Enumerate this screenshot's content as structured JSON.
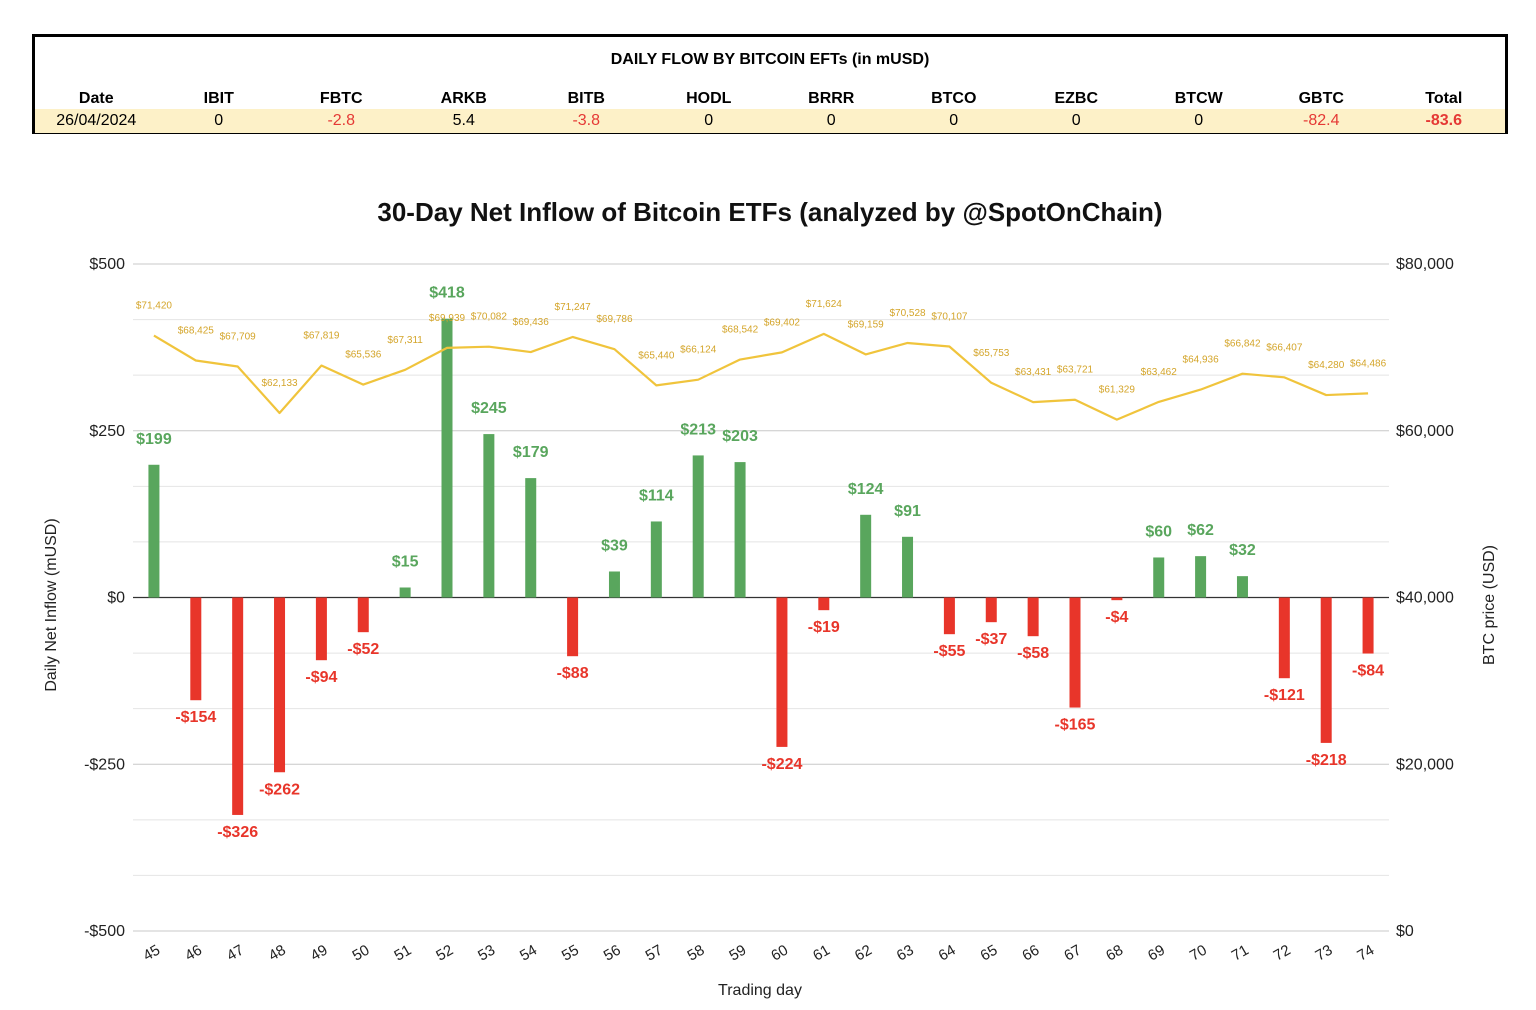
{
  "table": {
    "title": "DAILY FLOW BY BITCOIN EFTs (in mUSD)",
    "headers": [
      "Date",
      "IBIT",
      "FBTC",
      "ARKB",
      "BITB",
      "HODL",
      "BRRR",
      "BTCO",
      "EZBC",
      "BTCW",
      "GBTC",
      "Total"
    ],
    "values": [
      "26/04/2024",
      "0",
      "-2.8",
      "5.4",
      "-3.8",
      "0",
      "0",
      "0",
      "0",
      "0",
      "-82.4",
      "-83.6"
    ],
    "negative_color": "#e53935",
    "row_highlight_color": "#fdf1c8"
  },
  "chart_data": {
    "type": "bar",
    "title": "30-Day Net Inflow of Bitcoin ETFs (analyzed by @SpotOnChain)",
    "xlabel": "Trading day",
    "ylabel": "Daily Net Inflow (mUSD)",
    "y2label": "BTC price (USD)",
    "categories": [
      "45",
      "46",
      "47",
      "48",
      "49",
      "50",
      "51",
      "52",
      "53",
      "54",
      "55",
      "56",
      "57",
      "58",
      "59",
      "60",
      "61",
      "62",
      "63",
      "64",
      "65",
      "66",
      "67",
      "68",
      "69",
      "70",
      "71",
      "72",
      "73",
      "74"
    ],
    "series": [
      {
        "type": "bar",
        "axis": "left",
        "values": [
          199,
          -154,
          -326,
          -262,
          -94,
          -52,
          15,
          418,
          245,
          179,
          -88,
          39,
          114,
          213,
          203,
          -224,
          -19,
          124,
          91,
          -55,
          -37,
          -58,
          -165,
          -4,
          60,
          62,
          32,
          -121,
          -218,
          -84
        ],
        "labels": [
          "$199",
          "-$154",
          "-$326",
          "-$262",
          "-$94",
          "-$52",
          "$15",
          "$418",
          "$245",
          "$179",
          "-$88",
          "$39",
          "$114",
          "$213",
          "$203",
          "-$224",
          "-$19",
          "$124",
          "$91",
          "-$55",
          "-$37",
          "-$58",
          "-$165",
          "-$4",
          "$60",
          "$62",
          "$32",
          "-$121",
          "-$218",
          "-$84"
        ],
        "positive_color": "#59a65d",
        "negative_color": "#e8352a"
      },
      {
        "type": "line",
        "axis": "right",
        "values": [
          71420,
          68425,
          67709,
          62133,
          67819,
          65536,
          67311,
          69939,
          70082,
          69436,
          71247,
          69786,
          65440,
          66124,
          68542,
          69402,
          71624,
          69159,
          70528,
          70107,
          65753,
          63431,
          63721,
          61329,
          63462,
          64936,
          66842,
          66407,
          64280,
          64486
        ],
        "labels": [
          "$71,420",
          "$68,425",
          "$67,709",
          "$62,133",
          "$67,819",
          "$65,536",
          "$67,311",
          "$69,939",
          "$70,082",
          "$69,436",
          "$71,247",
          "$69,786",
          "$65,440",
          "$66,124",
          "$68,542",
          "$69,402",
          "$71,624",
          "$69,159",
          "$70,528",
          "$70,107",
          "$65,753",
          "$63,431",
          "$63,721",
          "$61,329",
          "$63,462",
          "$64,936",
          "$66,842",
          "$66,407",
          "$64,280",
          "$64,486"
        ],
        "color": "#f0c43c"
      }
    ],
    "ylim": [
      -500,
      500
    ],
    "y2lim": [
      0,
      80000
    ],
    "yticks": [
      "$500",
      "$250",
      "$0",
      "-$250",
      "-$500"
    ],
    "y2ticks": [
      "$80,000",
      "$60,000",
      "$40,000",
      "$20,000",
      "$0"
    ],
    "grid": true
  }
}
